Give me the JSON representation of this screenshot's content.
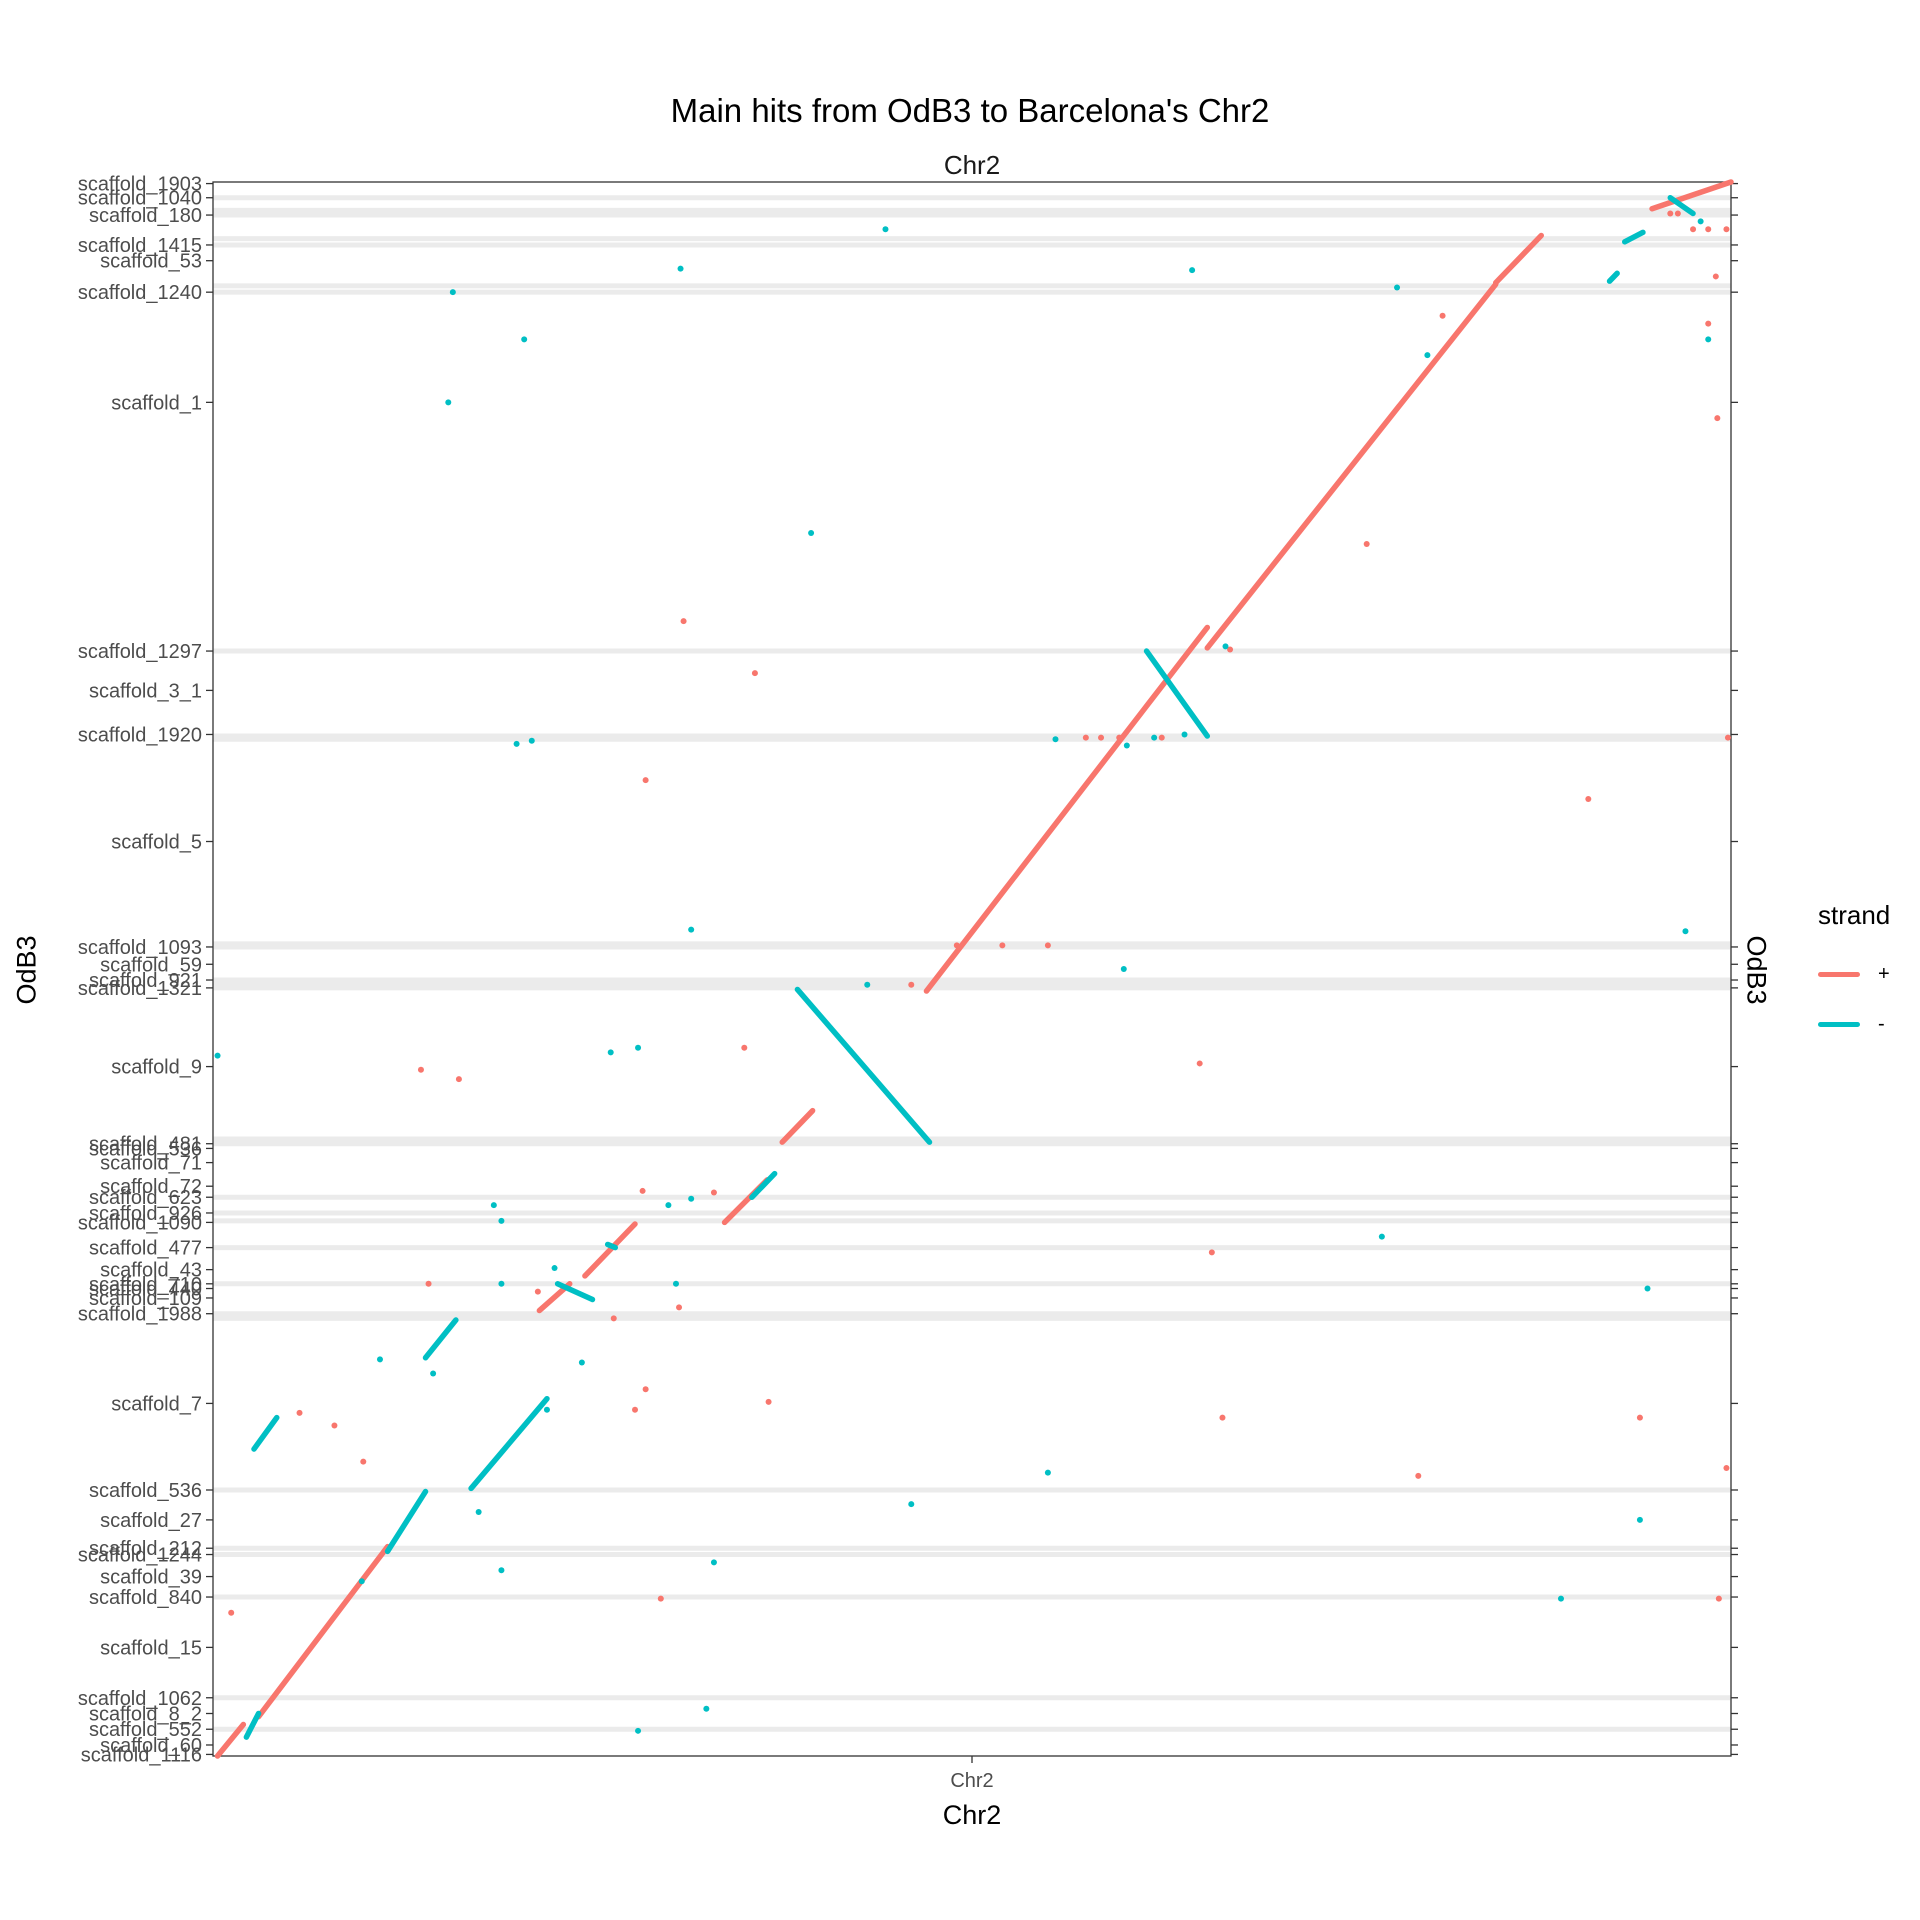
{
  "chart_data": {
    "type": "scatter",
    "title": "Main hits from OdB3 to Barcelona's Chr2",
    "facet_label": "Chr2",
    "xlabel": "Chr2",
    "ylabel": "OdB3",
    "ylabel_right": "OdB3",
    "x_tick_labels": [
      "Chr2"
    ],
    "xlim": [
      0,
      1
    ],
    "ylim": [
      0,
      1
    ],
    "legend": {
      "title": "strand",
      "position": "right",
      "entries": [
        {
          "label": "+",
          "color": "#F8766D"
        },
        {
          "label": "-",
          "color": "#00BFC4"
        }
      ]
    },
    "grid": "horizontal scaffold boundary bands",
    "y_tick_labels": [
      {
        "label": "scaffold_1116",
        "y": 0.001
      },
      {
        "label": "scaffold_60",
        "y": 0.007
      },
      {
        "label": "scaffold_552",
        "y": 0.017
      },
      {
        "label": "scaffold_8_2",
        "y": 0.027
      },
      {
        "label": "scaffold_1062",
        "y": 0.037
      },
      {
        "label": "scaffold_15",
        "y": 0.069
      },
      {
        "label": "scaffold_840",
        "y": 0.101
      },
      {
        "label": "scaffold_39",
        "y": 0.114
      },
      {
        "label": "scaffold_1244",
        "y": 0.128
      },
      {
        "label": "scaffold_212",
        "y": 0.132
      },
      {
        "label": "scaffold_27",
        "y": 0.15
      },
      {
        "label": "scaffold_536",
        "y": 0.169
      },
      {
        "label": "scaffold_7",
        "y": 0.224
      },
      {
        "label": "scaffold_1988",
        "y": 0.281
      },
      {
        "label": "scaffold_109",
        "y": 0.291
      },
      {
        "label": "scaffold_440",
        "y": 0.297
      },
      {
        "label": "scaffold_710",
        "y": 0.3
      },
      {
        "label": "scaffold_43",
        "y": 0.309
      },
      {
        "label": "scaffold_477",
        "y": 0.323
      },
      {
        "label": "scaffold_1090",
        "y": 0.339
      },
      {
        "label": "scaffold_926",
        "y": 0.345
      },
      {
        "label": "scaffold_623",
        "y": 0.355
      },
      {
        "label": "scaffold_72",
        "y": 0.362
      },
      {
        "label": "scaffold_71",
        "y": 0.377
      },
      {
        "label": "scaffold_536",
        "y": 0.386
      },
      {
        "label": "scaffold_481",
        "y": 0.389
      },
      {
        "label": "scaffold_9",
        "y": 0.438
      },
      {
        "label": "scaffold_1321",
        "y": 0.488
      },
      {
        "label": "scaffold_921",
        "y": 0.493
      },
      {
        "label": "scaffold_59",
        "y": 0.503
      },
      {
        "label": "scaffold_1093",
        "y": 0.514
      },
      {
        "label": "scaffold_5",
        "y": 0.581
      },
      {
        "label": "scaffold_1920",
        "y": 0.649
      },
      {
        "label": "scaffold_3_1",
        "y": 0.677
      },
      {
        "label": "scaffold_1297",
        "y": 0.702
      },
      {
        "label": "scaffold_1",
        "y": 0.86
      },
      {
        "label": "scaffold_1240",
        "y": 0.93
      },
      {
        "label": "scaffold_53",
        "y": 0.95
      },
      {
        "label": "scaffold_1415",
        "y": 0.96
      },
      {
        "label": "scaffold_180",
        "y": 0.979
      },
      {
        "label": "scaffold_1040",
        "y": 0.99
      },
      {
        "label": "scaffold_1903",
        "y": 0.999
      }
    ],
    "band_y": [
      0.017,
      0.037,
      0.101,
      0.128,
      0.132,
      0.169,
      0.278,
      0.281,
      0.3,
      0.323,
      0.34,
      0.345,
      0.355,
      0.389,
      0.392,
      0.488,
      0.491,
      0.493,
      0.514,
      0.516,
      0.646,
      0.648,
      0.702,
      0.93,
      0.934,
      0.96,
      0.964,
      0.979,
      0.982,
      0.99
    ],
    "series": [
      {
        "name": "+",
        "segments": [
          {
            "x": [
              0.003,
              0.02
            ],
            "y": [
              0.0,
              0.02
            ]
          },
          {
            "x": [
              0.03,
              0.115
            ],
            "y": [
              0.025,
              0.133
            ]
          },
          {
            "x": [
              0.215,
              0.235
            ],
            "y": [
              0.283,
              0.3
            ]
          },
          {
            "x": [
              0.245,
              0.278
            ],
            "y": [
              0.305,
              0.338
            ]
          },
          {
            "x": [
              0.337,
              0.365
            ],
            "y": [
              0.339,
              0.366
            ]
          },
          {
            "x": [
              0.375,
              0.395
            ],
            "y": [
              0.39,
              0.41
            ]
          },
          {
            "x": [
              0.47,
              0.655
            ],
            "y": [
              0.486,
              0.717
            ]
          },
          {
            "x": [
              0.655,
              0.845
            ],
            "y": [
              0.704,
              0.935
            ]
          },
          {
            "x": [
              0.845,
              0.875
            ],
            "y": [
              0.936,
              0.966
            ]
          },
          {
            "x": [
              0.948,
              1.0
            ],
            "y": [
              0.983,
              1.0
            ]
          }
        ],
        "points": [
          [
            0.012,
            0.091
          ],
          [
            0.057,
            0.218
          ],
          [
            0.08,
            0.21
          ],
          [
            0.099,
            0.187
          ],
          [
            0.137,
            0.436
          ],
          [
            0.142,
            0.3
          ],
          [
            0.162,
            0.43
          ],
          [
            0.214,
            0.295
          ],
          [
            0.264,
            0.278
          ],
          [
            0.278,
            0.22
          ],
          [
            0.283,
            0.359
          ],
          [
            0.285,
            0.233
          ],
          [
            0.285,
            0.62
          ],
          [
            0.295,
            0.1
          ],
          [
            0.307,
            0.285
          ],
          [
            0.31,
            0.721
          ],
          [
            0.33,
            0.358
          ],
          [
            0.35,
            0.45
          ],
          [
            0.357,
            0.688
          ],
          [
            0.366,
            0.225
          ],
          [
            0.46,
            0.49
          ],
          [
            0.49,
            0.515
          ],
          [
            0.52,
            0.515
          ],
          [
            0.55,
            0.515
          ],
          [
            0.575,
            0.647
          ],
          [
            0.585,
            0.647
          ],
          [
            0.597,
            0.647
          ],
          [
            0.625,
            0.647
          ],
          [
            0.65,
            0.44
          ],
          [
            0.658,
            0.32
          ],
          [
            0.665,
            0.215
          ],
          [
            0.67,
            0.703
          ],
          [
            0.76,
            0.77
          ],
          [
            0.794,
            0.178
          ],
          [
            0.81,
            0.915
          ],
          [
            0.906,
            0.608
          ],
          [
            0.94,
            0.215
          ],
          [
            0.96,
            0.98
          ],
          [
            0.985,
            0.91
          ],
          [
            0.991,
            0.85
          ],
          [
            0.992,
            0.1
          ],
          [
            0.997,
            0.183
          ],
          [
            0.998,
            0.647
          ],
          [
            0.997,
            0.97
          ],
          [
            0.99,
            0.94
          ],
          [
            0.965,
            0.98
          ],
          [
            0.975,
            0.97
          ],
          [
            0.985,
            0.97
          ]
        ]
      },
      {
        "name": "-",
        "segments": [
          {
            "x": [
              0.022,
              0.03
            ],
            "y": [
              0.012,
              0.027
            ]
          },
          {
            "x": [
              0.027,
              0.042
            ],
            "y": [
              0.195,
              0.215
            ]
          },
          {
            "x": [
              0.115,
              0.14
            ],
            "y": [
              0.13,
              0.168
            ]
          },
          {
            "x": [
              0.14,
              0.16
            ],
            "y": [
              0.253,
              0.277
            ]
          },
          {
            "x": [
              0.17,
              0.22
            ],
            "y": [
              0.17,
              0.227
            ]
          },
          {
            "x": [
              0.227,
              0.25
            ],
            "y": [
              0.3,
              0.29
            ]
          },
          {
            "x": [
              0.26,
              0.265
            ],
            "y": [
              0.325,
              0.323
            ]
          },
          {
            "x": [
              0.355,
              0.37
            ],
            "y": [
              0.355,
              0.37
            ]
          },
          {
            "x": [
              0.385,
              0.472
            ],
            "y": [
              0.487,
              0.39
            ]
          },
          {
            "x": [
              0.615,
              0.655
            ],
            "y": [
              0.702,
              0.648
            ]
          },
          {
            "x": [
              0.92,
              0.925
            ],
            "y": [
              0.937,
              0.942
            ]
          },
          {
            "x": [
              0.93,
              0.942
            ],
            "y": [
              0.962,
              0.968
            ]
          },
          {
            "x": [
              0.96,
              0.975
            ],
            "y": [
              0.99,
              0.98
            ]
          }
        ],
        "points": [
          [
            0.003,
            0.445
          ],
          [
            0.098,
            0.111
          ],
          [
            0.11,
            0.252
          ],
          [
            0.145,
            0.243
          ],
          [
            0.155,
            0.86
          ],
          [
            0.158,
            0.93
          ],
          [
            0.175,
            0.155
          ],
          [
            0.185,
            0.35
          ],
          [
            0.19,
            0.34
          ],
          [
            0.19,
            0.3
          ],
          [
            0.19,
            0.118
          ],
          [
            0.2,
            0.643
          ],
          [
            0.205,
            0.9
          ],
          [
            0.21,
            0.645
          ],
          [
            0.22,
            0.22
          ],
          [
            0.225,
            0.31
          ],
          [
            0.243,
            0.25
          ],
          [
            0.262,
            0.447
          ],
          [
            0.28,
            0.016
          ],
          [
            0.28,
            0.45
          ],
          [
            0.3,
            0.35
          ],
          [
            0.305,
            0.3
          ],
          [
            0.308,
            0.945
          ],
          [
            0.315,
            0.354
          ],
          [
            0.315,
            0.525
          ],
          [
            0.325,
            0.03
          ],
          [
            0.33,
            0.123
          ],
          [
            0.394,
            0.777
          ],
          [
            0.443,
            0.97
          ],
          [
            0.431,
            0.49
          ],
          [
            0.46,
            0.16
          ],
          [
            0.55,
            0.18
          ],
          [
            0.6,
            0.5
          ],
          [
            0.555,
            0.646
          ],
          [
            0.602,
            0.642
          ],
          [
            0.62,
            0.647
          ],
          [
            0.64,
            0.649
          ],
          [
            0.645,
            0.944
          ],
          [
            0.667,
            0.705
          ],
          [
            0.77,
            0.33
          ],
          [
            0.78,
            0.933
          ],
          [
            0.8,
            0.89
          ],
          [
            0.888,
            0.1
          ],
          [
            0.94,
            0.15
          ],
          [
            0.945,
            0.297
          ],
          [
            0.97,
            0.524
          ],
          [
            0.98,
            0.975
          ],
          [
            0.985,
            0.9
          ]
        ]
      }
    ]
  }
}
